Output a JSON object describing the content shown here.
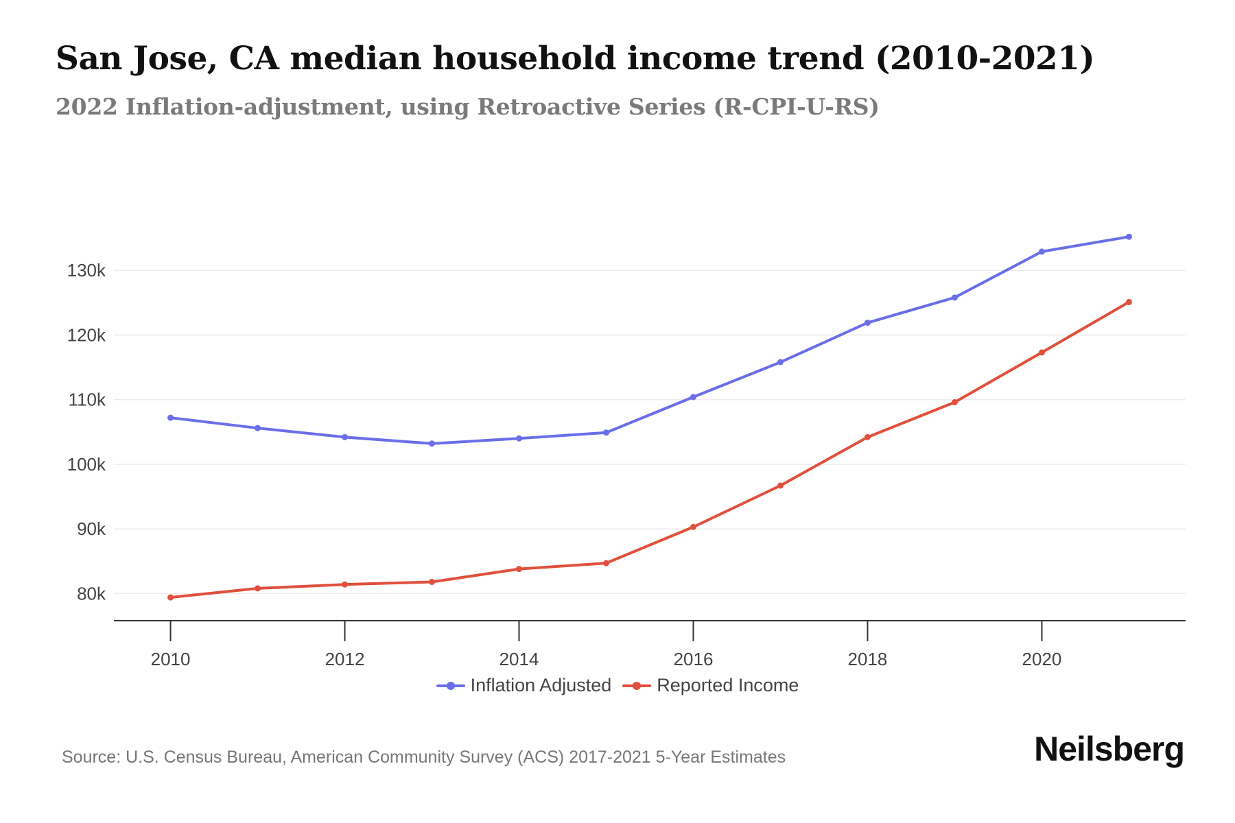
{
  "title": "San Jose, CA median household income trend (2010-2021)",
  "subtitle": "2022 Inflation-adjustment, using Retroactive Series (R-CPI-U-RS)",
  "source": "Source: U.S. Census Bureau, American Community Survey (ACS) 2017-2021 5-Year Estimates",
  "brand": "Neilsberg",
  "chart_data": {
    "type": "line",
    "x": [
      2010,
      2011,
      2012,
      2013,
      2014,
      2015,
      2016,
      2017,
      2018,
      2019,
      2020,
      2021
    ],
    "series": [
      {
        "name": "Inflation Adjusted",
        "color": "#6a6ee8",
        "values": [
          107200,
          105600,
          104200,
          103200,
          104000,
          104900,
          110400,
          115800,
          121900,
          125800,
          132900,
          135200
        ]
      },
      {
        "name": "Reported Income",
        "color": "#e0503c",
        "values": [
          79400,
          80800,
          81400,
          81800,
          83800,
          84700,
          90300,
          96700,
          104200,
          109600,
          117300,
          125100
        ]
      }
    ],
    "xticks": [
      2010,
      2012,
      2014,
      2016,
      2018,
      2020
    ],
    "yticks": [
      80000,
      90000,
      100000,
      110000,
      120000,
      130000
    ],
    "ytick_labels": [
      "80k",
      "90k",
      "100k",
      "110k",
      "120k",
      "130k"
    ],
    "ylim": [
      75800,
      140000
    ],
    "xlim": [
      2009.35,
      2021.65
    ],
    "grid": true,
    "legend_position": "bottom-center"
  }
}
